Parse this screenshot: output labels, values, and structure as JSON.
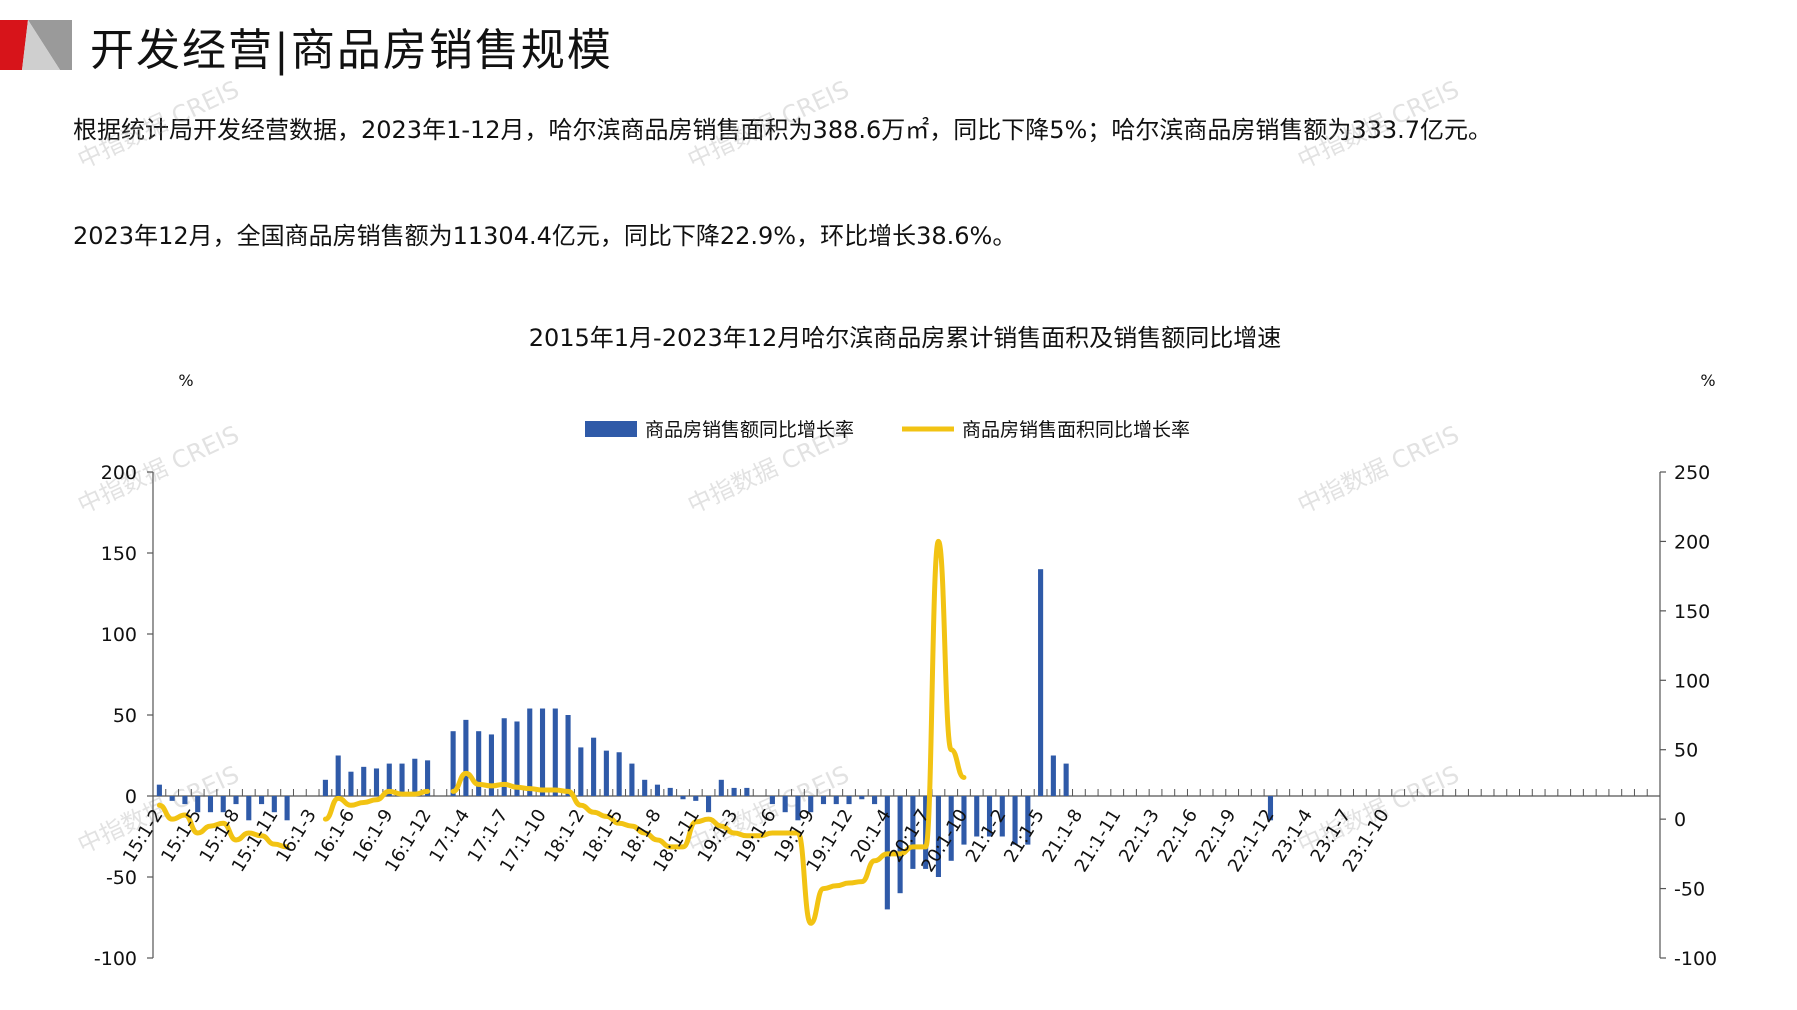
{
  "header": {
    "title": "开发经营|商品房销售规模",
    "brand_colors": {
      "red": "#d7141a",
      "gray": "#9a9a9a"
    }
  },
  "paragraphs": [
    "根据统计局开发经营数据，2023年1-12月，哈尔滨商品房销售面积为388.6万㎡，同比下降5%；哈尔滨商品房销售额为333.7亿元。",
    "2023年12月，全国商品房销售额为11304.4亿元，同比下降22.9%，环比增长38.6%。"
  ],
  "watermark": {
    "text": "中指数据 CREIS"
  },
  "chart_data": {
    "type": "bar",
    "title": "2015年1月-2023年12月哈尔滨商品房累计销售面积及销售额同比增速",
    "ylabel_left": "%",
    "ylabel_right": "%",
    "ylim_left": [
      -100,
      200
    ],
    "yticks_left": [
      -100,
      -50,
      0,
      50,
      100,
      150,
      200
    ],
    "ylim_right": [
      -100,
      250
    ],
    "yticks_right": [
      -100,
      -50,
      0,
      50,
      100,
      150,
      200,
      250
    ],
    "legend_position": "top-center",
    "colors": {
      "bar": "#2f5aa8",
      "line": "#f2c313",
      "axis": "#555555"
    },
    "series": [
      {
        "name": "商品房销售额同比增长率",
        "type": "bar",
        "axis": "left",
        "values": [
          7,
          -3,
          -5,
          -10,
          -10,
          -10,
          -5,
          -15,
          -5,
          -10,
          -15,
          null,
          null,
          10,
          25,
          15,
          18,
          17,
          20,
          20,
          23,
          22,
          null,
          40,
          47,
          40,
          38,
          48,
          46,
          54,
          54,
          54,
          50,
          30,
          36,
          28,
          27,
          20,
          10,
          7,
          5,
          -2,
          -3,
          -10,
          10,
          5,
          5,
          null,
          -5,
          -10,
          -15,
          -10,
          -5,
          -5,
          -5,
          -2,
          -5,
          -70,
          -60,
          -45,
          -45,
          -50,
          -40,
          -30,
          -25,
          -25,
          -25,
          -30,
          -30,
          140,
          25,
          20,
          null,
          null,
          null,
          null,
          null,
          null,
          null,
          null,
          null,
          null,
          null,
          null,
          null,
          null,
          null,
          -15,
          null,
          null,
          null,
          null,
          null,
          null,
          null,
          null,
          null,
          null,
          null,
          null,
          null,
          null,
          null,
          null,
          null,
          null,
          null,
          null,
          null,
          null,
          null,
          null,
          null,
          null,
          null,
          null,
          null,
          null
        ]
      },
      {
        "name": "商品房销售面积同比增长率",
        "type": "line",
        "axis": "right",
        "values": [
          10,
          0,
          3,
          -10,
          -5,
          -3,
          -15,
          -10,
          -12,
          -18,
          -20,
          null,
          null,
          0,
          15,
          10,
          12,
          14,
          20,
          18,
          18,
          20,
          null,
          20,
          33,
          25,
          24,
          25,
          23,
          22,
          21,
          21,
          20,
          10,
          5,
          2,
          -3,
          -5,
          -10,
          -15,
          -20,
          -20,
          -2,
          0,
          -5,
          -10,
          -12,
          -12,
          -10,
          -10,
          -10,
          -75,
          -50,
          -48,
          -46,
          -45,
          -30,
          -25,
          -25,
          -20,
          -20,
          200,
          50,
          30
        ]
      }
    ],
    "x_tick_labels": [
      "15:1-2",
      "15:1-5",
      "15:1-8",
      "15:1-11",
      "16:1-3",
      "16:1-6",
      "16:1-9",
      "16:1-12",
      "17:1-4",
      "17:1-7",
      "17:1-10",
      "18:1-2",
      "18:1-5",
      "18:1-8",
      "18:1-11",
      "19:1-3",
      "19:1-6",
      "19:1-9",
      "19:1-12",
      "20:1-4",
      "20:1-7",
      "20:1-10",
      "21:1-2",
      "21:1-5",
      "21:1-8",
      "21:1-11",
      "22:1-3",
      "22:1-6",
      "22:1-9",
      "22:1-12",
      "23:1-4",
      "23:1-7",
      "23:1-10"
    ]
  }
}
